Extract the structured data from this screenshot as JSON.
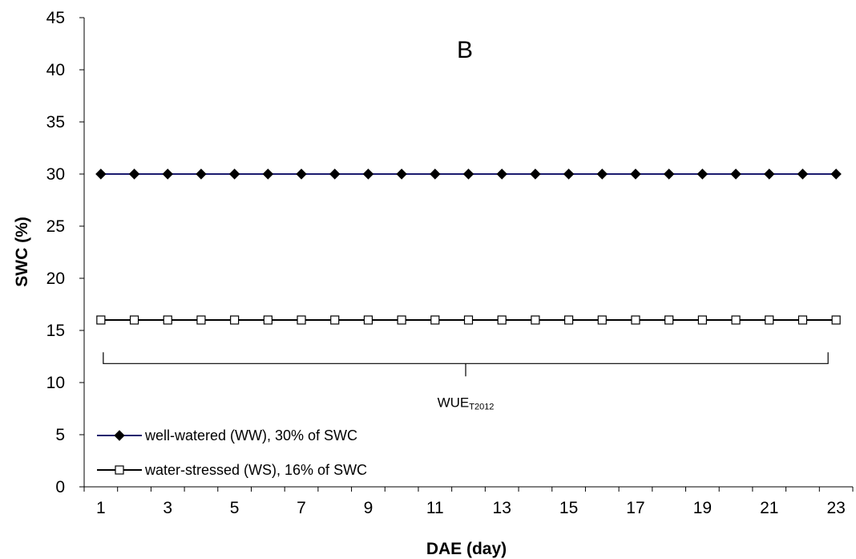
{
  "chart_data": {
    "type": "line",
    "title": "",
    "panel_label": "B",
    "xlabel": "DAE (day)",
    "ylabel": "SWC (%)",
    "xlim": [
      0.5,
      23.5
    ],
    "ylim": [
      0,
      45
    ],
    "x_ticks": [
      1,
      3,
      5,
      7,
      9,
      11,
      13,
      15,
      17,
      19,
      21,
      23
    ],
    "y_ticks": [
      0,
      5,
      10,
      15,
      20,
      25,
      30,
      35,
      40,
      45
    ],
    "grid": false,
    "legend_position": "bottom-left",
    "x": [
      1,
      2,
      3,
      4,
      5,
      6,
      7,
      8,
      9,
      10,
      11,
      12,
      13,
      14,
      15,
      16,
      17,
      18,
      19,
      20,
      21,
      22,
      23
    ],
    "series": [
      {
        "name": "well-watered (WW), 30% of SWC",
        "color": "#1a1a6e",
        "marker": "diamond-filled",
        "values": [
          30,
          30,
          30,
          30,
          30,
          30,
          30,
          30,
          30,
          30,
          30,
          30,
          30,
          30,
          30,
          30,
          30,
          30,
          30,
          30,
          30,
          30,
          30
        ]
      },
      {
        "name": "water-stressed (WS), 16% of SWC",
        "color": "#000000",
        "marker": "square-open",
        "values": [
          16,
          16,
          16,
          16,
          16,
          16,
          16,
          16,
          16,
          16,
          16,
          16,
          16,
          16,
          16,
          16,
          16,
          16,
          16,
          16,
          16,
          16,
          16
        ]
      }
    ],
    "annotation": {
      "text": "WUE",
      "subscript": "T2012",
      "bracket_x": [
        1,
        23
      ],
      "bracket_y": 12.9
    }
  }
}
